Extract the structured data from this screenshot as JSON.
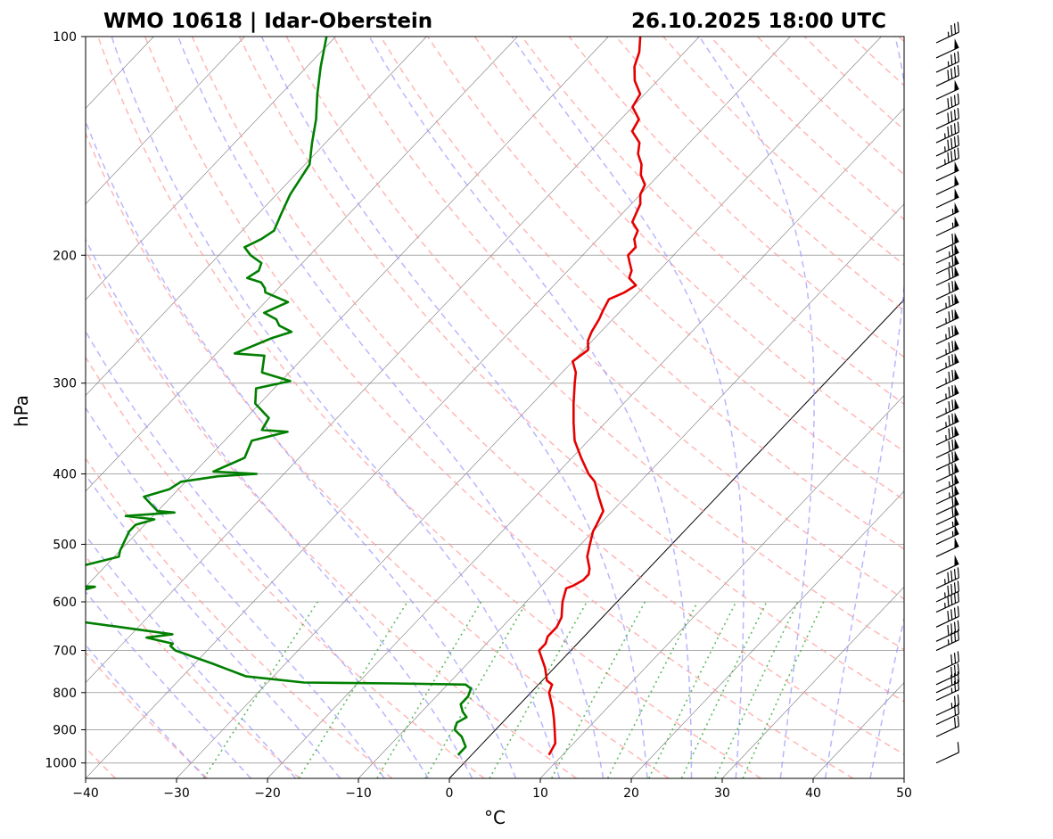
{
  "title_left": "WMO 10618 | Idar-Oberstein",
  "title_right": "26.10.2025 18:00 UTC",
  "chart_data": {
    "type": "line",
    "diagram": "skew-T log-p",
    "xlabel": "°C",
    "ylabel": "hPa",
    "xlim": [
      -40,
      50
    ],
    "ylim": [
      1050,
      100
    ],
    "y_scale": "log",
    "grid": true,
    "x_ticks": [
      -40,
      -30,
      -20,
      -10,
      0,
      10,
      20,
      30,
      40,
      50
    ],
    "x_tick_labels": [
      "−40",
      "−30",
      "−20",
      "−10",
      "0",
      "10",
      "20",
      "30",
      "40",
      "50"
    ],
    "y_ticks": [
      1000,
      900,
      800,
      700,
      600,
      500,
      400,
      300,
      200,
      100
    ],
    "y_tick_labels": [
      "1000",
      "900",
      "800",
      "700",
      "600",
      "500",
      "400",
      "300",
      "200",
      "100"
    ],
    "colors": {
      "temperature": "#e50000",
      "dewpoint": "#007f00",
      "dry_adiabats": "#ff9999",
      "moist_adiabats": "#9999ff",
      "mixing_ratio": "#33aa33",
      "isotherms": "#777777",
      "isobars": "#aaaaaa"
    },
    "series": [
      {
        "name": "temperature",
        "color": "#e50000",
        "pressure": [
          975,
          940,
          900,
          870,
          840,
          800,
          780,
          770,
          740,
          700,
          685,
          670,
          650,
          630,
          600,
          575,
          570,
          560,
          550,
          540,
          520,
          500,
          480,
          470,
          450,
          430,
          410,
          400,
          380,
          360,
          340,
          320,
          300,
          290,
          280,
          270,
          262,
          255,
          245,
          238,
          230,
          225,
          220,
          215,
          210,
          205,
          200,
          195,
          190,
          185,
          180,
          175,
          170,
          165,
          160,
          155,
          150,
          145,
          140,
          135,
          130,
          125,
          120,
          115,
          110,
          105,
          100
        ],
        "temperature": [
          8.5,
          8.0,
          6.5,
          5.3,
          4.0,
          2.0,
          1.5,
          0.5,
          -1.0,
          -3.5,
          -3.5,
          -4.0,
          -4.0,
          -4.5,
          -6.0,
          -7.0,
          -6.5,
          -6.0,
          -6.0,
          -6.5,
          -8.0,
          -9.0,
          -10.0,
          -10.3,
          -11.0,
          -13.0,
          -15.0,
          -16.5,
          -19.0,
          -21.5,
          -23.5,
          -25.5,
          -27.5,
          -28.5,
          -30.0,
          -29.5,
          -30.5,
          -31.0,
          -31.5,
          -32.0,
          -32.5,
          -31.5,
          -31.0,
          -32.5,
          -33.0,
          -34.0,
          -35.0,
          -35.0,
          -36.0,
          -36.5,
          -38.0,
          -38.5,
          -39.0,
          -40.0,
          -40.5,
          -42.0,
          -43.0,
          -44.5,
          -45.5,
          -47.5,
          -48.0,
          -50.0,
          -50.5,
          -52.5,
          -54.0,
          -55.0,
          -56.5
        ]
      },
      {
        "name": "dewpoint",
        "color": "#007f00",
        "pressure": [
          975,
          950,
          940,
          920,
          900,
          880,
          865,
          850,
          830,
          810,
          790,
          780,
          777,
          775,
          760,
          730,
          700,
          690,
          685,
          672,
          665,
          650,
          640,
          630,
          620,
          600,
          590,
          572,
          570,
          562,
          555,
          545,
          535,
          520,
          510,
          495,
          480,
          470,
          462,
          457,
          452,
          450,
          440,
          430,
          420,
          410,
          403,
          400,
          397,
          380,
          360,
          350,
          348,
          335,
          320,
          305,
          298,
          290,
          275,
          273,
          260,
          255,
          250,
          245,
          240,
          232,
          225,
          222,
          218,
          215,
          210,
          205,
          200,
          195,
          190,
          185,
          175,
          165,
          150,
          140,
          130,
          120,
          110,
          100
        ],
        "dewpoint": [
          -1.5,
          -1.5,
          -2.0,
          -3.0,
          -4.5,
          -5.0,
          -4.5,
          -5.5,
          -6.5,
          -6.5,
          -7.0,
          -8.0,
          -16.0,
          -26.0,
          -33.0,
          -38.0,
          -43.5,
          -44.5,
          -44.5,
          -48.0,
          -45.5,
          -52.0,
          -56.5,
          -61.0,
          -62.0,
          -66.5,
          -62.0,
          -59.0,
          -62.5,
          -64.0,
          -65.5,
          -65.0,
          -62.5,
          -59.5,
          -60.0,
          -60.5,
          -61.0,
          -61.0,
          -59.5,
          -63.0,
          -58.0,
          -60.0,
          -61.5,
          -63.0,
          -61.0,
          -60.5,
          -57.0,
          -53.0,
          -58.0,
          -56.0,
          -57.0,
          -54.0,
          -57.0,
          -57.5,
          -60.5,
          -62.0,
          -59.0,
          -63.0,
          -64.5,
          -68.0,
          -65.5,
          -64.0,
          -66.0,
          -67.0,
          -69.0,
          -67.5,
          -71.0,
          -71.5,
          -72.5,
          -74.5,
          -74.0,
          -74.5,
          -76.5,
          -78.0,
          -77.0,
          -76.5,
          -77.5,
          -78.5,
          -79.5,
          -81.5,
          -83.5,
          -86.0,
          -88.5,
          -91.0
        ]
      }
    ],
    "zero_isotherm_highlight": 0,
    "wind_barbs": {
      "pressure": [
        1000,
        920,
        885,
        860,
        820,
        800,
        780,
        750,
        700,
        680,
        650,
        620,
        600,
        575,
        550,
        520,
        500,
        485,
        470,
        455,
        440,
        425,
        410,
        395,
        380,
        365,
        350,
        335,
        320,
        305,
        290,
        278,
        265,
        252,
        240,
        230,
        220,
        212,
        205,
        198,
        188,
        180,
        172,
        165,
        158,
        152,
        146,
        140,
        134,
        128,
        122,
        117,
        112,
        107,
        102
      ],
      "speed_kt": [
        10,
        20,
        20,
        25,
        25,
        30,
        30,
        30,
        35,
        40,
        40,
        45,
        45,
        45,
        50,
        50,
        55,
        55,
        60,
        60,
        65,
        65,
        70,
        70,
        70,
        75,
        75,
        75,
        75,
        75,
        75,
        75,
        75,
        75,
        75,
        70,
        70,
        65,
        65,
        60,
        55,
        55,
        50,
        50,
        50,
        45,
        45,
        45,
        40,
        40,
        50,
        40,
        35,
        50,
        35
      ]
    }
  }
}
